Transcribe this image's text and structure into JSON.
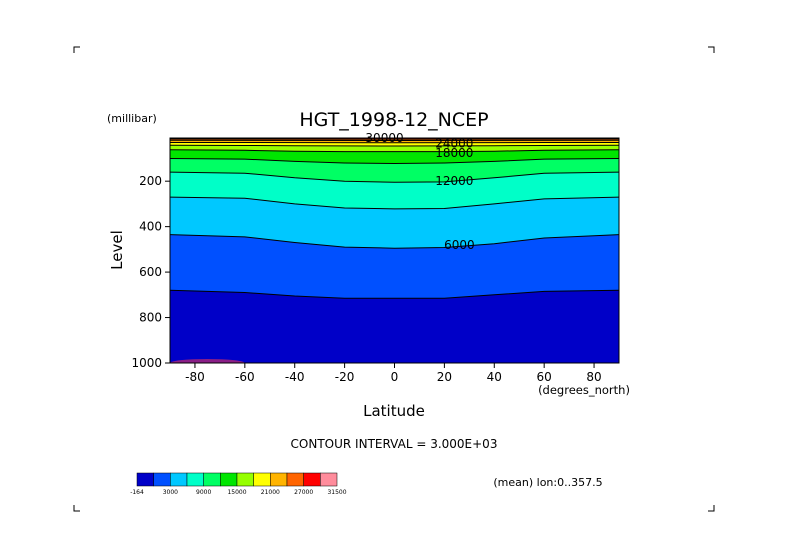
{
  "chart_data": {
    "type": "contour",
    "title": "HGT_1998-12_NCEP",
    "xlabel": "Latitude",
    "x_units": "(degrees_north)",
    "ylabel": "Level",
    "y_units": "(millibar)",
    "xlim": [
      -90,
      90
    ],
    "ylim": [
      1000,
      10
    ],
    "xticks": [
      "-80",
      "-60",
      "-40",
      "-20",
      "0",
      "20",
      "40",
      "60",
      "80"
    ],
    "yticks": [
      "200",
      "400",
      "600",
      "800",
      "1000"
    ],
    "contour_interval_text": "CONTOUR INTERVAL = 3.000E+03",
    "averaging_text": "(mean) lon:0..357.5",
    "contour_labels": [
      {
        "text": "30000",
        "lat": -4,
        "level": 10
      },
      {
        "text": "24000",
        "lat": 24,
        "level": 35
      },
      {
        "text": "18000",
        "lat": 24,
        "level": 75
      },
      {
        "text": "12000",
        "lat": 24,
        "level": 200
      },
      {
        "text": "6000",
        "lat": 26,
        "level": 480
      }
    ],
    "contours": [
      {
        "value": 3000,
        "points": [
          [
            -90,
            680
          ],
          [
            -60,
            690
          ],
          [
            -40,
            705
          ],
          [
            -20,
            715
          ],
          [
            0,
            715
          ],
          [
            20,
            715
          ],
          [
            40,
            700
          ],
          [
            60,
            685
          ],
          [
            90,
            680
          ]
        ]
      },
      {
        "value": 6000,
        "points": [
          [
            -90,
            435
          ],
          [
            -60,
            445
          ],
          [
            -40,
            470
          ],
          [
            -20,
            490
          ],
          [
            0,
            495
          ],
          [
            20,
            492
          ],
          [
            40,
            475
          ],
          [
            60,
            450
          ],
          [
            90,
            435
          ]
        ]
      },
      {
        "value": 9000,
        "points": [
          [
            -90,
            270
          ],
          [
            -60,
            275
          ],
          [
            -40,
            300
          ],
          [
            -20,
            318
          ],
          [
            0,
            322
          ],
          [
            20,
            320
          ],
          [
            40,
            300
          ],
          [
            60,
            278
          ],
          [
            90,
            270
          ]
        ]
      },
      {
        "value": 12000,
        "points": [
          [
            -90,
            160
          ],
          [
            -60,
            165
          ],
          [
            -40,
            185
          ],
          [
            -20,
            200
          ],
          [
            0,
            205
          ],
          [
            20,
            203
          ],
          [
            40,
            185
          ],
          [
            60,
            165
          ],
          [
            90,
            160
          ]
        ]
      },
      {
        "value": 15000,
        "points": [
          [
            -90,
            100
          ],
          [
            -60,
            103
          ],
          [
            -40,
            113
          ],
          [
            -20,
            120
          ],
          [
            0,
            122
          ],
          [
            20,
            120
          ],
          [
            40,
            113
          ],
          [
            60,
            103
          ],
          [
            90,
            100
          ]
        ]
      },
      {
        "value": 18000,
        "points": [
          [
            -90,
            62
          ],
          [
            -60,
            64
          ],
          [
            -40,
            68
          ],
          [
            -20,
            70
          ],
          [
            0,
            70
          ],
          [
            20,
            70
          ],
          [
            40,
            68
          ],
          [
            60,
            64
          ],
          [
            90,
            62
          ]
        ]
      },
      {
        "value": 21000,
        "points": [
          [
            -90,
            42
          ],
          [
            -60,
            43
          ],
          [
            -40,
            44
          ],
          [
            0,
            45
          ],
          [
            40,
            44
          ],
          [
            60,
            43
          ],
          [
            90,
            42
          ]
        ]
      },
      {
        "value": 24000,
        "points": [
          [
            -90,
            30
          ],
          [
            -60,
            30
          ],
          [
            0,
            31
          ],
          [
            60,
            30
          ],
          [
            90,
            30
          ]
        ]
      },
      {
        "value": 27000,
        "points": [
          [
            -90,
            20
          ],
          [
            0,
            21
          ],
          [
            90,
            20
          ]
        ]
      },
      {
        "value": 30000,
        "points": [
          [
            -90,
            14
          ],
          [
            0,
            15
          ],
          [
            90,
            14
          ]
        ]
      }
    ],
    "surface_patch": {
      "lat": [
        -90,
        -60
      ],
      "note": "values below 0 near 1000 mb"
    },
    "colorbar": {
      "labels": [
        "-164",
        "3000",
        "9000",
        "15000",
        "21000",
        "27000",
        "31500"
      ],
      "colors": [
        "#0000c8",
        "#0050ff",
        "#00c8ff",
        "#00ffc8",
        "#00ff64",
        "#00e600",
        "#96ff00",
        "#ffff00",
        "#ffb400",
        "#ff6400",
        "#ff0000",
        "#ff8c9c"
      ]
    }
  }
}
